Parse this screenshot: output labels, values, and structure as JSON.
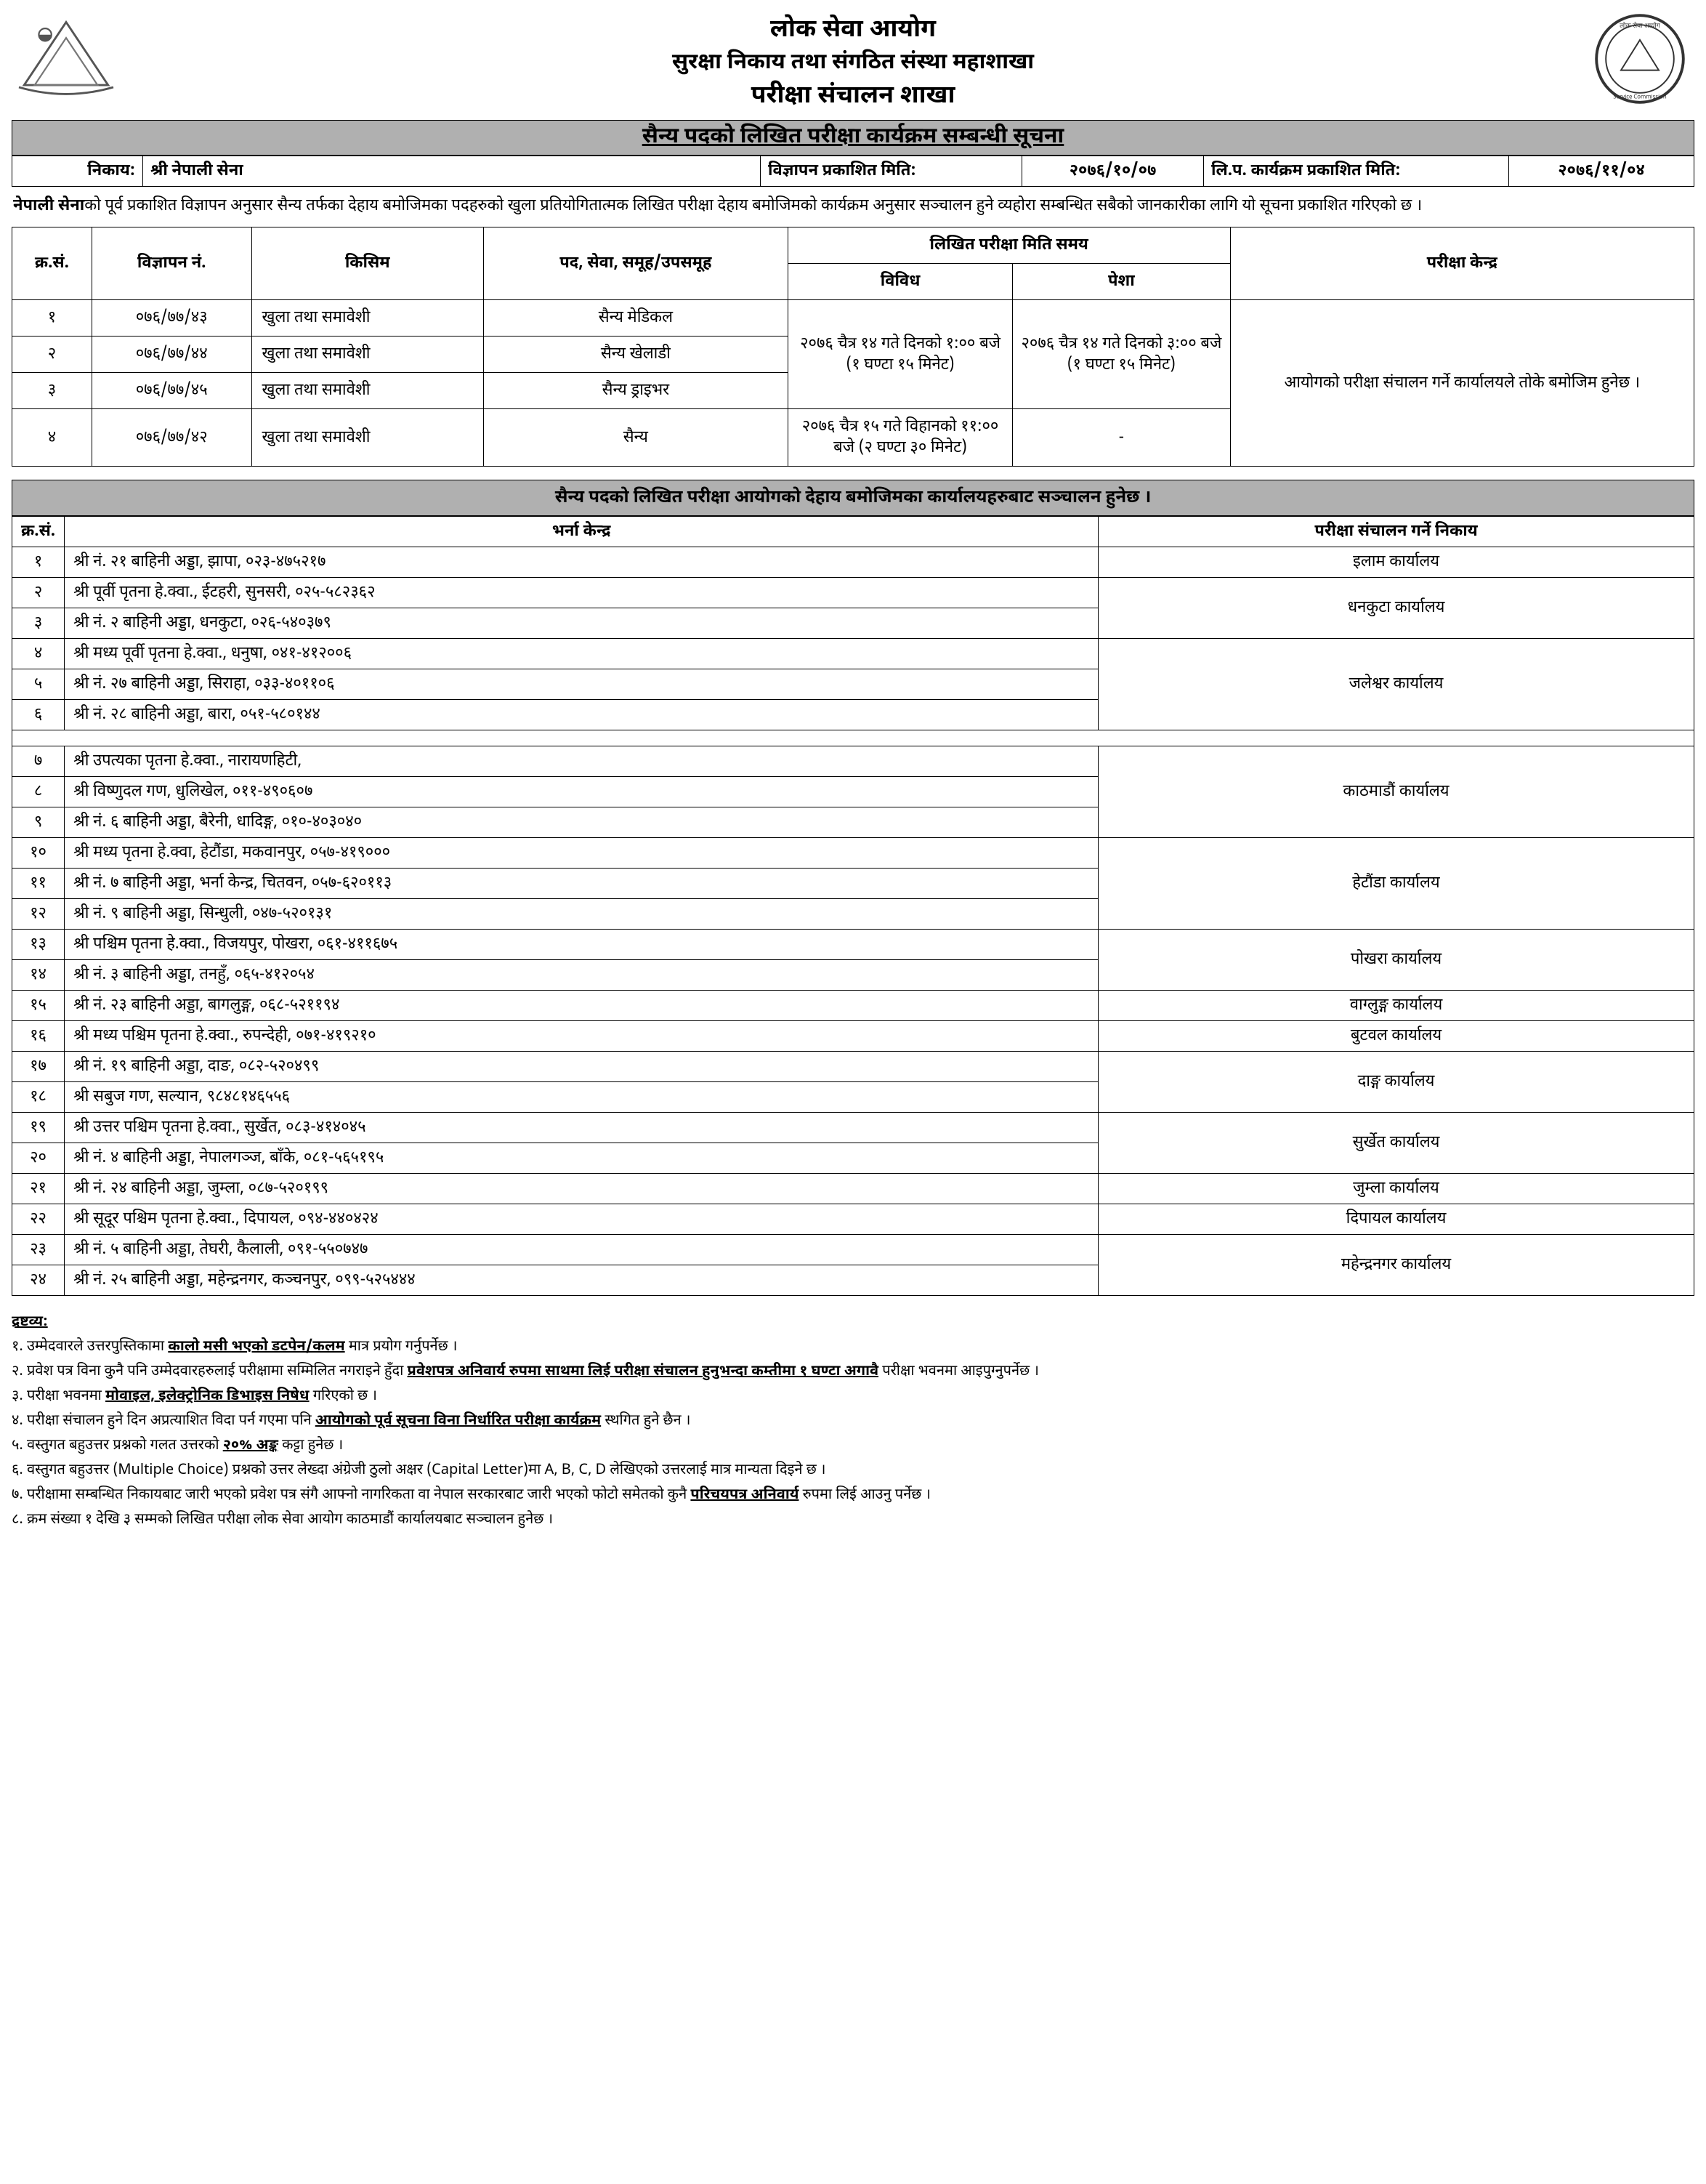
{
  "header": {
    "org": "लोक सेवा आयोग",
    "dept": "सुरक्षा निकाय तथा संगठित संस्था महाशाखा",
    "branch": "परीक्षा संचालन शाखा"
  },
  "notice_bar": "सैन्य पदको लिखित परीक्षा कार्यक्रम सम्बन्धी सूचना",
  "meta": {
    "body_label": "निकाय:",
    "body_value": "श्री नेपाली सेना",
    "ad_pub_label": "विज्ञापन प्रकाशित मिति:",
    "ad_pub_value": "२०७६/१०/०७",
    "prog_pub_label": "लि.प. कार्यक्रम प्रकाशित मिति:",
    "prog_pub_value": "२०७६/११/०४"
  },
  "intro": {
    "lead": "नेपाली सेना",
    "rest": "को पूर्व प्रकाशित विज्ञापन अनुसार सैन्य तर्फका देहाय बमोजिमका पदहरुको खुला प्रतियोगितात्मक लिखित परीक्षा देहाय बमोजिमको कार्यक्रम अनुसार सञ्चालन हुने व्यहोरा सम्बन्धित सबैको जानकारीका लागि यो सूचना प्रकाशित गरिएको छ ।"
  },
  "sched": {
    "cols": {
      "sn": "क्र.सं.",
      "adno": "विज्ञापन नं.",
      "type": "किसिम",
      "post": "पद, सेवा, समूह/उपसमूह",
      "datetime": "लिखित परीक्षा मिति समय",
      "misc": "विविध",
      "prof": "पेशा",
      "center": "परीक्षा केन्द्र"
    },
    "rows": [
      {
        "sn": "१",
        "adno": "०७६/७७/४३",
        "type": "खुला तथा समावेशी",
        "post": "सैन्य मेडिकल"
      },
      {
        "sn": "२",
        "adno": "०७६/७७/४४",
        "type": "खुला तथा समावेशी",
        "post": "सैन्य खेलाडी"
      },
      {
        "sn": "३",
        "adno": "०७६/७७/४५",
        "type": "खुला तथा समावेशी",
        "post": "सैन्य ड्राइभर"
      },
      {
        "sn": "४",
        "adno": "०७६/७७/४२",
        "type": "खुला तथा समावेशी",
        "post": "सैन्य"
      }
    ],
    "time_misc_1_3": "२०७६ चैत्र १४ गते दिनको १:०० बजे (१ घण्टा १५ मिनेट)",
    "time_prof_1_3": "२०७६ चैत्र १४ गते दिनको ३:०० बजे (१ घण्टा १५ मिनेट)",
    "time_misc_4": "२०७६ चैत्र १५ गते विहानको ११:०० बजे  (२ घण्टा ३० मिनेट)",
    "time_prof_4": "-",
    "center_all": "आयोगको परीक्षा संचालन गर्ने कार्यालयले तोके बमोजिम हुनेछ ।"
  },
  "section_bar": "सैन्य पदको लिखित परीक्षा आयोगको देहाय बमोजिमका कार्यालयहरुबाट सञ्चालन हुनेछ ।",
  "centers": {
    "cols": {
      "sn": "क्र.सं.",
      "loc": "भर्ना केन्द्र",
      "off": "परीक्षा संचालन गर्ने निकाय"
    },
    "rows": [
      {
        "sn": "१",
        "loc": "श्री नं. २१ बाहिनी अड्डा, झापा, ०२३-४७५२१७",
        "off": "इलाम कार्यालय",
        "span": 1
      },
      {
        "sn": "२",
        "loc": "श्री पूर्वी पृतना हे.क्वा., ईटहरी, सुनसरी, ०२५-५८२३६२",
        "off": "धनकुटा कार्यालय",
        "span": 2
      },
      {
        "sn": "३",
        "loc": "श्री नं. २ बाहिनी अड्डा, धनकुटा, ०२६-५४०३७९"
      },
      {
        "sn": "४",
        "loc": "श्री मध्य पूर्वी पृतना हे.क्वा., धनुषा, ०४१-४१२००६",
        "off": "जलेश्वर कार्यालय",
        "span": 3
      },
      {
        "sn": "५",
        "loc": "श्री नं. २७ बाहिनी अड्डा, सिराहा, ०३३-४०११०६"
      },
      {
        "sn": "६",
        "loc": "श्री नं. २८ बाहिनी अड्डा, बारा, ०५१-५८०१४४"
      },
      {
        "sn": "७",
        "loc": "श्री उपत्यका पृतना हे.क्वा., नारायणहिटी,",
        "off": "काठमाडौं कार्यालय",
        "span": 3,
        "group": "g2"
      },
      {
        "sn": "८",
        "loc": "श्री विष्णुदल गण, धुलिखेल, ०११-४९०६०७"
      },
      {
        "sn": "९",
        "loc": "श्री नं. ६ बाहिनी अड्डा, बैरेनी, धादिङ्ग, ०१०-४०३०४०"
      },
      {
        "sn": "१०",
        "loc": "श्री मध्य पृतना हे.क्वा, हेटौंडा, मकवानपुर, ०५७-४१९०००",
        "off": "हेटौंडा कार्यालय",
        "span": 3
      },
      {
        "sn": "११",
        "loc": "श्री नं. ७ बाहिनी अड्डा, भर्ना केन्द्र, चितवन, ०५७-६२०११३"
      },
      {
        "sn": "१२",
        "loc": "श्री नं. ९ बाहिनी अड्डा, सिन्धुली, ०४७-५२०१३१"
      },
      {
        "sn": "१३",
        "loc": "श्री पश्चिम पृतना हे.क्वा., विजयपुर, पोखरा, ०६१-४११६७५",
        "off": "पोखरा कार्यालय",
        "span": 2
      },
      {
        "sn": "१४",
        "loc": "श्री नं. ३ बाहिनी अड्डा, तनहुँ, ०६५-४१२०५४"
      },
      {
        "sn": "१५",
        "loc": "श्री नं. २३ बाहिनी अड्डा, बागलुङ्ग, ०६८-५२११९४",
        "off": "वाग्लुङ्ग कार्यालय",
        "span": 1
      },
      {
        "sn": "१६",
        "loc": "श्री मध्य पश्चिम पृतना हे.क्वा., रुपन्देही, ०७१-४१९२१०",
        "off": "बुटवल कार्यालय",
        "span": 1
      },
      {
        "sn": "१७",
        "loc": "श्री नं. १९ बाहिनी अड्डा, दाङ, ०८२-५२०४९९",
        "off": "दाङ्ग कार्यालय",
        "span": 2
      },
      {
        "sn": "१८",
        "loc": "श्री सबुज गण, सल्यान, ९८४८१४६५५६"
      },
      {
        "sn": "१९",
        "loc": "श्री उत्तर पश्चिम पृतना हे.क्वा., सुर्खेत, ०८३-४१४०४५",
        "off": "सुर्खेत कार्यालय",
        "span": 2
      },
      {
        "sn": "२०",
        "loc": "श्री नं. ४ बाहिनी अड्डा, नेपालगञ्ज, बाँके, ०८१-५६५१९५"
      },
      {
        "sn": "२१",
        "loc": "श्री नं. २४ बाहिनी अड्डा, जुम्ला, ०८७-५२०१९९",
        "off": "जुम्ला कार्यालय",
        "span": 1
      },
      {
        "sn": "२२",
        "loc": "श्री सूदूर पश्चिम पृतना हे.क्वा., दिपायल, ०९४-४४०४२४",
        "off": "दिपायल कार्यालय",
        "span": 1
      },
      {
        "sn": "२३",
        "loc": "श्री नं. ५ बाहिनी अड्डा, तेघरी, कैलाली, ०९१-५५०७४७",
        "off": "महेन्द्रनगर कार्यालय",
        "span": 2
      },
      {
        "sn": "२४",
        "loc": "श्री नं. २५ बाहिनी अड्डा, महेन्द्रनगर, कञ्चनपुर, ०९९-५२५४४४"
      }
    ]
  },
  "notes": {
    "heading": "द्रष्टव्य:",
    "items": [
      {
        "n": "१.",
        "pre": "उम्मेदवारले उत्तरपुस्तिकामा ",
        "u": "कालो मसी भएको डटपेन/कलम",
        "post": " मात्र प्रयोग गर्नुपर्नेछ ।"
      },
      {
        "n": "२.",
        "pre": "प्रवेश पत्र विना कुनै पनि उम्मेदवारहरुलाई परीक्षामा सम्मिलित नगराइने हुँदा ",
        "u": "प्रवेशपत्र अनिवार्य रुपमा साथमा लिई परीक्षा संचालन हुनुभन्दा कम्तीमा १ घण्टा अगावै",
        "post": " परीक्षा भवनमा आइपुग्नुपर्नेछ ।"
      },
      {
        "n": "३.",
        "pre": "परीक्षा भवनमा ",
        "u": "मोवाइल, इलेक्ट्रोनिक डिभाइस निषेध",
        "post": " गरिएको छ ।"
      },
      {
        "n": "४.",
        "pre": "परीक्षा संचालन हुने दिन अप्रत्याशित विदा पर्न गएमा पनि ",
        "u": "आयोगको पूर्व सूचना विना निर्धारित परीक्षा कार्यक्रम",
        "post": " स्थगित हुने छैन ।"
      },
      {
        "n": "५.",
        "pre": "वस्तुगत बहुउत्तर प्रश्नको गलत उत्तरको ",
        "u": "२०% अङ्क",
        "post": " कट्टा हुनेछ ।"
      },
      {
        "n": "६.",
        "pre": "वस्तुगत बहुउत्तर (Multiple Choice) प्रश्नको उत्तर लेख्दा अंग्रेजी ठुलो अक्षर (Capital Letter)मा  A, B, C, D लेखिएको उत्तरलाई मात्र मान्यता दिइने छ ।",
        "u": "",
        "post": ""
      },
      {
        "n": "७.",
        "pre": "परीक्षामा सम्बन्धित निकायबाट जारी भएको प्रवेश पत्र संगै आफ्नो नागरिकता वा नेपाल सरकारबाट जारी भएको फोटो समेतको कुनै ",
        "u": "परिचयपत्र अनिवार्य",
        "post": " रुपमा लिई आउनु पर्नेछ ।"
      },
      {
        "n": "८.",
        "pre": "क्रम संख्या १ देखि ३ सम्मको लिखित परीक्षा लोक सेवा आयोग काठमाडौं कार्यालयबाट सञ्चालन हुनेछ ।",
        "u": "",
        "post": ""
      }
    ]
  },
  "style": {
    "bar_bg": "#b0b0b0",
    "border": "#000000",
    "text": "#000000",
    "page_bg": "#ffffff"
  }
}
